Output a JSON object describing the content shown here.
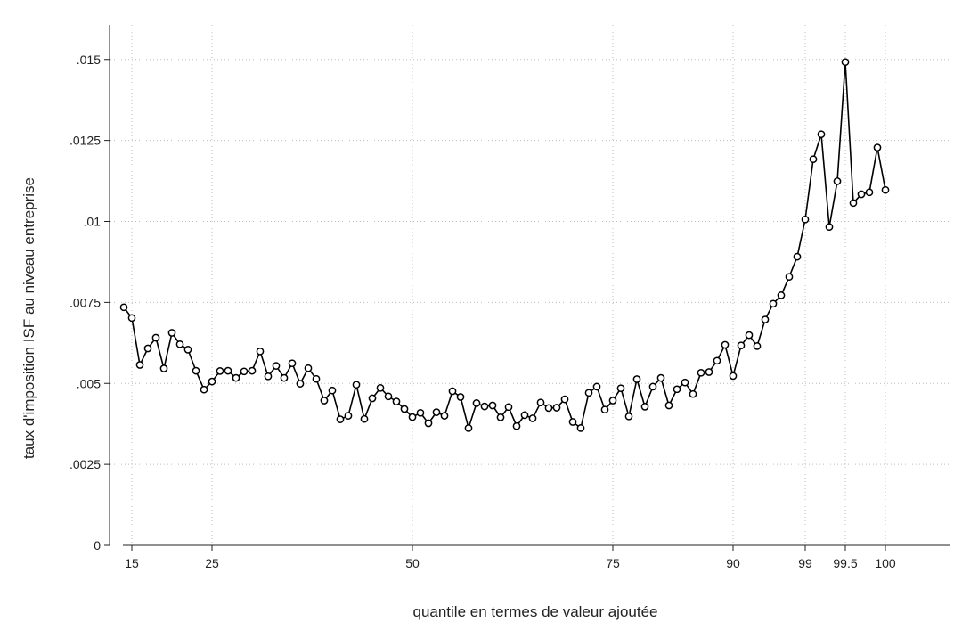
{
  "chart_data": {
    "type": "line",
    "xlabel": "quantile en termes de valeur ajoutée",
    "ylabel": "taux d'imposition ISF au niveau entreprise",
    "ylim": [
      0,
      0.0162
    ],
    "y_ticks": [
      {
        "value": 0,
        "label": "0"
      },
      {
        "value": 0.0025,
        "label": ".0025"
      },
      {
        "value": 0.005,
        "label": ".005"
      },
      {
        "value": 0.0075,
        "label": ".0075"
      },
      {
        "value": 0.01,
        "label": ".01"
      },
      {
        "value": 0.0125,
        "label": ".0125"
      },
      {
        "value": 0.015,
        "label": ".015"
      }
    ],
    "x_ticks": [
      {
        "label": "15",
        "index": 1
      },
      {
        "label": "25",
        "index": 11
      },
      {
        "label": "50",
        "index": 36
      },
      {
        "label": "75",
        "index": 61
      },
      {
        "label": "90",
        "index": 76
      },
      {
        "label": "99",
        "index": 85
      },
      {
        "label": "99.5",
        "index": 90
      },
      {
        "label": "100",
        "index": 95
      }
    ],
    "grid": true,
    "series": [
      {
        "values": [
          0.00735,
          0.00702,
          0.00557,
          0.00608,
          0.00641,
          0.00546,
          0.00656,
          0.00621,
          0.00604,
          0.00539,
          0.00481,
          0.00506,
          0.00538,
          0.00539,
          0.00517,
          0.00537,
          0.00539,
          0.00599,
          0.00522,
          0.00554,
          0.00517,
          0.00562,
          0.00499,
          0.00547,
          0.00514,
          0.00447,
          0.00478,
          0.00389,
          0.004,
          0.00496,
          0.0039,
          0.00454,
          0.00486,
          0.0046,
          0.00444,
          0.00421,
          0.00396,
          0.00409,
          0.00377,
          0.00411,
          0.004,
          0.00476,
          0.00458,
          0.00362,
          0.00439,
          0.00429,
          0.00432,
          0.00395,
          0.00427,
          0.00368,
          0.00402,
          0.00392,
          0.00441,
          0.00424,
          0.00425,
          0.00451,
          0.00381,
          0.00362,
          0.00471,
          0.0049,
          0.00419,
          0.00447,
          0.00485,
          0.00398,
          0.00513,
          0.00428,
          0.0049,
          0.00517,
          0.00432,
          0.00482,
          0.00503,
          0.00467,
          0.00533,
          0.00535,
          0.0057,
          0.00619,
          0.00523,
          0.00617,
          0.00649,
          0.00615,
          0.00697,
          0.00746,
          0.00772,
          0.00829,
          0.00891,
          0.01006,
          0.01192,
          0.01269,
          0.00983,
          0.01124,
          0.01492,
          0.01057,
          0.01084,
          0.0109,
          0.01228,
          0.01097
        ]
      }
    ]
  }
}
